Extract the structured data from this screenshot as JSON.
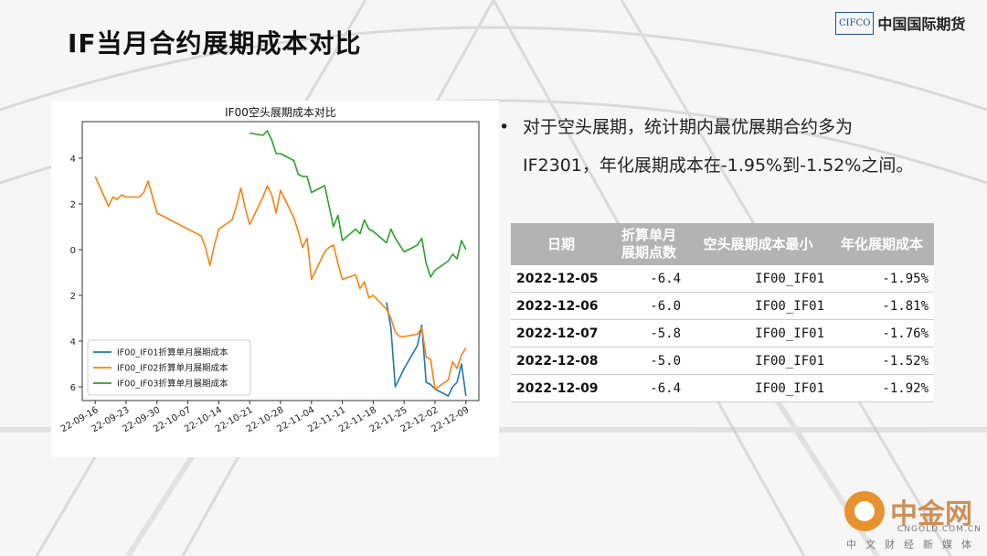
{
  "slide": {
    "title": "IF当月合约展期成本对比",
    "logo_box": "CIFCO",
    "logo_name": "中国国际期货"
  },
  "bullet": {
    "line1": "对于空头展期，统计期内最优展期合约多为",
    "line2": "IF2301，年化展期成本在-1.95%到-1.52%之间。"
  },
  "table": {
    "headers": [
      "日期",
      "折算单月展期点数",
      "空头展期成本最小",
      "年化展期成本"
    ],
    "rows": [
      [
        "2022-12-05",
        "-6.4",
        "IF00_IF01",
        "-1.95%"
      ],
      [
        "2022-12-06",
        "-6.0",
        "IF00_IF01",
        "-1.81%"
      ],
      [
        "2022-12-07",
        "-5.8",
        "IF00_IF01",
        "-1.76%"
      ],
      [
        "2022-12-08",
        "-5.0",
        "IF00_IF01",
        "-1.52%"
      ],
      [
        "2022-12-09",
        "-6.4",
        "IF00_IF01",
        "-1.92%"
      ]
    ]
  },
  "watermark": {
    "name": "中金网",
    "domain": "CNGOLD.COM.CN",
    "sub": "中文财经新媒体"
  },
  "colors": {
    "series1": "#1f77b4",
    "series2": "#ff7f0e",
    "series3": "#2ca02c",
    "header_bg": "#b3b3b3",
    "accent": "#e8912f"
  },
  "chart_data": {
    "type": "line",
    "title": "IF00空头展期成本对比",
    "xlabel": "",
    "ylabel": "",
    "x_start": "22-09-16",
    "x_end": "22-12-09",
    "xticks": [
      "22-09-16",
      "22-09-23",
      "22-09-30",
      "22-10-07",
      "22-10-14",
      "22-10-21",
      "22-10-28",
      "22-11-04",
      "22-11-11",
      "22-11-18",
      "22-11-25",
      "22-12-02",
      "22-12-09"
    ],
    "yticks": [
      4,
      2,
      0,
      -2,
      -4,
      -6
    ],
    "ytick_labels": [
      "4",
      "2",
      "0",
      " 2",
      " 4",
      " 6"
    ],
    "ylim": [
      -6.6,
      5.6
    ],
    "legend_position": "lower-left",
    "grid": false,
    "series": [
      {
        "name": "IF00_IF01折算单月展期成本",
        "color": "#1f77b4",
        "points": [
          [
            "22-11-21",
            -2.3
          ],
          [
            "22-11-22",
            -3.4
          ],
          [
            "22-11-23",
            -6.0
          ],
          [
            "22-11-24",
            -5.6
          ],
          [
            "22-11-25",
            -5.2
          ],
          [
            "22-11-28",
            -4.2
          ],
          [
            "22-11-29",
            -3.3
          ],
          [
            "22-11-30",
            -5.8
          ],
          [
            "22-12-01",
            -5.9
          ],
          [
            "22-12-02",
            -6.1
          ],
          [
            "22-12-05",
            -6.4
          ],
          [
            "22-12-06",
            -6.0
          ],
          [
            "22-12-07",
            -5.8
          ],
          [
            "22-12-08",
            -5.0
          ],
          [
            "22-12-09",
            -6.4
          ]
        ]
      },
      {
        "name": "IF00_IF02折算单月展期成本",
        "color": "#ff7f0e",
        "points": [
          [
            "22-09-16",
            3.2
          ],
          [
            "22-09-19",
            1.9
          ],
          [
            "22-09-20",
            2.3
          ],
          [
            "22-09-21",
            2.2
          ],
          [
            "22-09-22",
            2.4
          ],
          [
            "22-09-23",
            2.3
          ],
          [
            "22-09-26",
            2.3
          ],
          [
            "22-09-27",
            2.5
          ],
          [
            "22-09-28",
            3.0
          ],
          [
            "22-09-29",
            2.3
          ],
          [
            "22-09-30",
            1.6
          ],
          [
            "22-10-10",
            0.6
          ],
          [
            "22-10-11",
            0.1
          ],
          [
            "22-10-12",
            -0.7
          ],
          [
            "22-10-13",
            0.2
          ],
          [
            "22-10-14",
            0.9
          ],
          [
            "22-10-17",
            1.3
          ],
          [
            "22-10-18",
            1.9
          ],
          [
            "22-10-19",
            2.7
          ],
          [
            "22-10-20",
            1.8
          ],
          [
            "22-10-21",
            1.1
          ],
          [
            "22-10-24",
            2.3
          ],
          [
            "22-10-25",
            2.8
          ],
          [
            "22-10-26",
            2.4
          ],
          [
            "22-10-27",
            1.6
          ],
          [
            "22-10-28",
            2.6
          ],
          [
            "22-10-31",
            1.4
          ],
          [
            "22-11-01",
            0.8
          ],
          [
            "22-11-02",
            0.1
          ],
          [
            "22-11-03",
            0.5
          ],
          [
            "22-11-04",
            -1.3
          ],
          [
            "22-11-07",
            -0.1
          ],
          [
            "22-11-08",
            0.1
          ],
          [
            "22-11-09",
            0.2
          ],
          [
            "22-11-10",
            -0.6
          ],
          [
            "22-11-11",
            -1.3
          ],
          [
            "22-11-14",
            -1.1
          ],
          [
            "22-11-15",
            -1.7
          ],
          [
            "22-11-16",
            -1.4
          ],
          [
            "22-11-17",
            -2.1
          ],
          [
            "22-11-18",
            -2.0
          ],
          [
            "22-11-21",
            -2.6
          ],
          [
            "22-11-22",
            -3.0
          ],
          [
            "22-11-23",
            -3.6
          ],
          [
            "22-11-24",
            -3.8
          ],
          [
            "22-11-25",
            -3.8
          ],
          [
            "22-11-28",
            -3.7
          ],
          [
            "22-11-29",
            -3.4
          ],
          [
            "22-11-30",
            -4.7
          ],
          [
            "22-12-01",
            -4.8
          ],
          [
            "22-12-02",
            -6.1
          ],
          [
            "22-12-05",
            -5.7
          ],
          [
            "22-12-06",
            -4.9
          ],
          [
            "22-12-07",
            -5.2
          ],
          [
            "22-12-08",
            -4.6
          ],
          [
            "22-12-09",
            -4.3
          ]
        ]
      },
      {
        "name": "IF00_IF03折算单月展期成本",
        "color": "#2ca02c",
        "points": [
          [
            "22-10-21",
            5.1
          ],
          [
            "22-10-24",
            5.0
          ],
          [
            "22-10-25",
            5.2
          ],
          [
            "22-10-26",
            4.8
          ],
          [
            "22-10-27",
            4.2
          ],
          [
            "22-10-28",
            4.2
          ],
          [
            "22-10-31",
            3.9
          ],
          [
            "22-11-01",
            3.3
          ],
          [
            "22-11-02",
            3.2
          ],
          [
            "22-11-03",
            3.2
          ],
          [
            "22-11-04",
            2.5
          ],
          [
            "22-11-07",
            2.8
          ],
          [
            "22-11-08",
            1.9
          ],
          [
            "22-11-09",
            1.0
          ],
          [
            "22-11-10",
            1.5
          ],
          [
            "22-11-11",
            0.4
          ],
          [
            "22-11-14",
            0.9
          ],
          [
            "22-11-15",
            0.7
          ],
          [
            "22-11-16",
            1.3
          ],
          [
            "22-11-17",
            0.9
          ],
          [
            "22-11-18",
            0.8
          ],
          [
            "22-11-21",
            0.3
          ],
          [
            "22-11-22",
            0.9
          ],
          [
            "22-11-23",
            0.5
          ],
          [
            "22-11-24",
            0.2
          ],
          [
            "22-11-25",
            -0.1
          ],
          [
            "22-11-28",
            0.2
          ],
          [
            "22-11-29",
            0.5
          ],
          [
            "22-11-30",
            -0.6
          ],
          [
            "22-12-01",
            -1.2
          ],
          [
            "22-12-02",
            -0.9
          ],
          [
            "22-12-05",
            -0.5
          ],
          [
            "22-12-06",
            -0.2
          ],
          [
            "22-12-07",
            -0.4
          ],
          [
            "22-12-08",
            0.4
          ],
          [
            "22-12-09",
            0.0
          ]
        ]
      }
    ]
  }
}
